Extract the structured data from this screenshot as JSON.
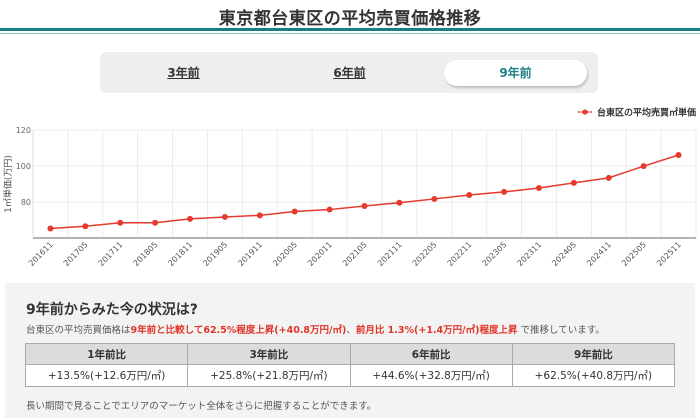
{
  "header": {
    "title": "東京都台東区の平均売買価格推移",
    "accent_color": "#16807c",
    "accent_light_color": "#8fc9c6"
  },
  "tabs": [
    {
      "label": "3年前",
      "active": false
    },
    {
      "label": "6年前",
      "active": false
    },
    {
      "label": "9年前",
      "active": true
    }
  ],
  "tab_active_color": "#1a7f86",
  "chart_data": {
    "type": "line",
    "title": "",
    "xlabel": "",
    "ylabel": "1㎡単価(万円)",
    "ylim": [
      60,
      120
    ],
    "yticks": [
      80,
      100,
      120
    ],
    "grid": true,
    "legend_position": "top-right",
    "categories": [
      "201611",
      "201705",
      "201711",
      "201805",
      "201811",
      "201905",
      "201911",
      "202005",
      "202011",
      "202105",
      "202111",
      "202205",
      "202211",
      "202305",
      "202311",
      "202405",
      "202411",
      "202505",
      "202511"
    ],
    "series": [
      {
        "name": "台東区の平均売買㎡単価",
        "color": "#e53a2d",
        "values": [
          65.3,
          66.5,
          68.5,
          68.5,
          70.6,
          71.7,
          72.6,
          74.7,
          75.8,
          77.8,
          79.6,
          81.7,
          83.9,
          85.6,
          87.8,
          90.6,
          93.4,
          99.9,
          106.1
        ]
      }
    ]
  },
  "summary": {
    "heading": "9年前からみた今の状況は?",
    "desc_prefix": "台東区の平均売買価格は",
    "desc_hl1": "9年前と比較して62.5%程度上昇(+40.8万円/㎡)",
    "desc_mid": "、",
    "desc_hl2": "前月比 1.3%(+1.4万円/㎡)程度上昇",
    "desc_suffix": " で推移しています。",
    "table": {
      "headers": [
        "1年前比",
        "3年前比",
        "6年前比",
        "9年前比"
      ],
      "values": [
        "+13.5%(+12.6万円/㎡)",
        "+25.8%(+21.8万円/㎡)",
        "+44.6%(+32.8万円/㎡)",
        "+62.5%(+40.8万円/㎡)"
      ]
    },
    "note": "長い期間で見ることでエリアのマーケット全体をさらに把握することができます。"
  }
}
